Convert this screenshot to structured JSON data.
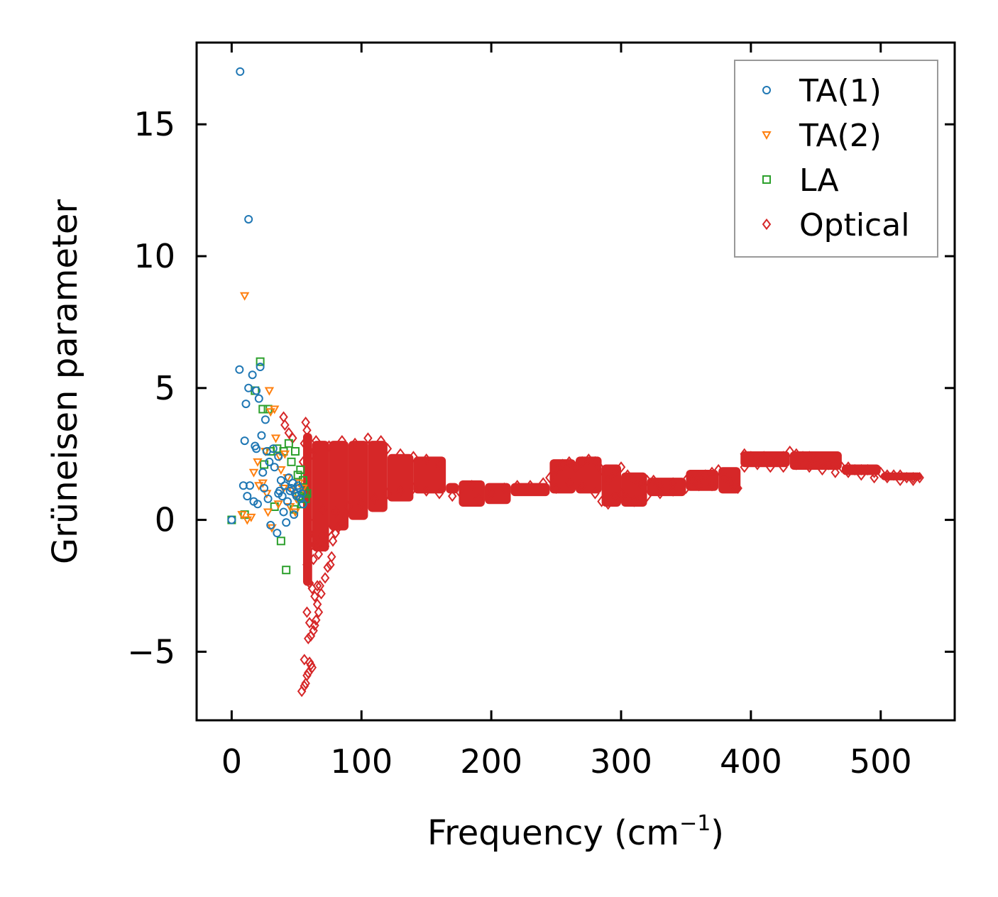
{
  "chart_data": {
    "type": "scatter",
    "title": "",
    "xlabel": "Frequency (cm",
    "xlabel_sup": "−1",
    "xlabel_end": ")",
    "ylabel": "Grüneisen parameter",
    "xlim": [
      -27,
      557
    ],
    "ylim": [
      -7.6,
      18.1
    ],
    "xticks": [
      0,
      100,
      200,
      300,
      400,
      500
    ],
    "xtick_labels": [
      "0",
      "100",
      "200",
      "300",
      "400",
      "500"
    ],
    "yticks": [
      -5,
      0,
      5,
      10,
      15
    ],
    "ytick_labels": [
      "−5",
      "0",
      "5",
      "10",
      "15"
    ],
    "grid": false,
    "legend_position": "top-right",
    "series": [
      {
        "name": "TA(1)",
        "marker": "circle",
        "color": "#1f77b4",
        "points": [
          [
            6.5,
            17.0
          ],
          [
            13,
            11.4
          ],
          [
            6,
            5.7
          ],
          [
            13,
            5.0
          ],
          [
            16,
            5.5
          ],
          [
            11,
            4.4
          ],
          [
            19,
            4.9
          ],
          [
            21,
            4.6
          ],
          [
            22,
            5.8
          ],
          [
            26,
            3.8
          ],
          [
            23,
            3.2
          ],
          [
            10,
            3.0
          ],
          [
            18,
            2.8
          ],
          [
            19,
            2.7
          ],
          [
            27,
            2.6
          ],
          [
            32,
            2.7
          ],
          [
            36,
            2.4
          ],
          [
            9,
            1.3
          ],
          [
            14,
            1.3
          ],
          [
            12,
            0.9
          ],
          [
            17,
            0.7
          ],
          [
            20,
            0.6
          ],
          [
            24,
            1.8
          ],
          [
            29,
            2.2
          ],
          [
            33,
            2.0
          ],
          [
            36,
            1.0
          ],
          [
            38,
            1.5
          ],
          [
            40,
            0.3
          ],
          [
            42,
            -0.1
          ],
          [
            35,
            -0.5
          ],
          [
            30,
            -0.2
          ],
          [
            0,
            0.0
          ],
          [
            25,
            1.2
          ],
          [
            28,
            0.8
          ],
          [
            45,
            1.1
          ],
          [
            47,
            1.4
          ],
          [
            50,
            0.9
          ],
          [
            52,
            1.2
          ],
          [
            54,
            1.0
          ],
          [
            55,
            0.6
          ],
          [
            44,
            1.6
          ],
          [
            48,
            0.2
          ],
          [
            37,
            1.1
          ],
          [
            41,
            1.3
          ],
          [
            43,
            0.7
          ],
          [
            39,
            0.9
          ],
          [
            46,
            1.2
          ],
          [
            49,
            1.0
          ],
          [
            51,
            1.3
          ],
          [
            53,
            0.8
          ]
        ]
      },
      {
        "name": "TA(2)",
        "marker": "triangle-down",
        "color": "#ff7f0e",
        "points": [
          [
            10,
            8.5
          ],
          [
            29,
            4.9
          ],
          [
            30,
            4.1
          ],
          [
            33,
            4.2
          ],
          [
            34,
            3.1
          ],
          [
            20,
            2.2
          ],
          [
            26,
            2.6
          ],
          [
            37,
            2.4
          ],
          [
            41,
            2.5
          ],
          [
            17,
            1.8
          ],
          [
            21,
            1.3
          ],
          [
            24,
            1.4
          ],
          [
            27,
            1.0
          ],
          [
            8,
            0.2
          ],
          [
            12,
            0.0
          ],
          [
            15,
            0.1
          ],
          [
            28,
            0.3
          ],
          [
            31,
            -0.3
          ],
          [
            38,
            1.9
          ],
          [
            43,
            1.6
          ],
          [
            47,
            1.1
          ],
          [
            50,
            0.8
          ],
          [
            52,
            1.4
          ],
          [
            55,
            1.2
          ],
          [
            45,
            0.5
          ],
          [
            49,
            0.3
          ],
          [
            36,
            0.6
          ],
          [
            40,
            1.2
          ]
        ]
      },
      {
        "name": "LA",
        "marker": "square",
        "color": "#2ca02c",
        "points": [
          [
            22,
            6.0
          ],
          [
            18,
            4.9
          ],
          [
            24,
            4.2
          ],
          [
            28,
            4.2
          ],
          [
            40,
            2.6
          ],
          [
            44,
            2.9
          ],
          [
            49,
            2.6
          ],
          [
            46,
            2.2
          ],
          [
            51,
            1.7
          ],
          [
            53,
            1.9
          ],
          [
            55,
            1.5
          ],
          [
            56,
            1.1
          ],
          [
            57,
            0.8
          ],
          [
            58,
            1.0
          ],
          [
            35,
            2.7
          ],
          [
            30,
            2.6
          ],
          [
            25,
            2.1
          ],
          [
            38,
            -0.8
          ],
          [
            42,
            -1.9
          ],
          [
            0,
            0.0
          ],
          [
            10,
            0.2
          ],
          [
            33,
            0.5
          ],
          [
            48,
            0.4
          ],
          [
            52,
            0.9
          ],
          [
            54,
            0.6
          ]
        ]
      },
      {
        "name": "Optical",
        "marker": "diamond",
        "color": "#d62728",
        "points": [
          [
            40,
            3.9
          ],
          [
            41,
            3.6
          ],
          [
            44,
            3.3
          ],
          [
            47,
            3.1
          ],
          [
            57,
            3.7
          ],
          [
            58,
            3.4
          ],
          [
            56,
            2.9
          ],
          [
            60,
            2.6
          ],
          [
            62,
            2.5
          ],
          [
            55,
            2.2
          ],
          [
            58,
            1.8
          ],
          [
            59,
            0.0
          ],
          [
            60,
            -0.5
          ],
          [
            61,
            -1.0
          ],
          [
            62,
            -0.8
          ],
          [
            63,
            -1.5
          ],
          [
            65,
            -1.0
          ],
          [
            67,
            -1.3
          ],
          [
            70,
            -0.6
          ],
          [
            72,
            -1.0
          ],
          [
            75,
            -0.4
          ],
          [
            78,
            -0.8
          ],
          [
            80,
            -0.5
          ],
          [
            82,
            -0.3
          ],
          [
            85,
            -0.1
          ],
          [
            88,
            0.2
          ],
          [
            76,
            -1.7
          ],
          [
            68,
            -2.5
          ],
          [
            58,
            -1.7
          ],
          [
            60,
            -2.4
          ],
          [
            62,
            -2.6
          ],
          [
            64,
            -2.9
          ],
          [
            66,
            -2.5
          ],
          [
            58,
            -3.5
          ],
          [
            60,
            -3.9
          ],
          [
            63,
            -4.2
          ],
          [
            65,
            -3.8
          ],
          [
            59,
            -4.5
          ],
          [
            61,
            -4.4
          ],
          [
            67,
            -3.5
          ],
          [
            56,
            -5.3
          ],
          [
            60,
            -5.4
          ],
          [
            62,
            -5.6
          ],
          [
            58,
            -5.9
          ],
          [
            56,
            -6.3
          ],
          [
            54,
            -6.5
          ],
          [
            57,
            -6.2
          ],
          [
            59,
            -5.8
          ],
          [
            61,
            -5.5
          ],
          [
            64,
            -4.0
          ],
          [
            66,
            -3.2
          ],
          [
            69,
            -2.8
          ],
          [
            72,
            -2.2
          ],
          [
            74,
            -1.8
          ],
          [
            77,
            -1.4
          ],
          [
            65,
            3.0
          ],
          [
            75,
            2.8
          ],
          [
            85,
            3.0
          ],
          [
            95,
            2.9
          ],
          [
            105,
            3.1
          ],
          [
            115,
            3.0
          ],
          [
            120,
            2.7
          ],
          [
            130,
            2.5
          ],
          [
            140,
            2.4
          ],
          [
            150,
            2.3
          ],
          [
            160,
            2.1
          ],
          [
            70,
            0.4
          ],
          [
            80,
            0.3
          ],
          [
            90,
            0.5
          ],
          [
            100,
            0.6
          ],
          [
            110,
            0.8
          ],
          [
            120,
            1.0
          ],
          [
            130,
            1.1
          ],
          [
            140,
            1.2
          ],
          [
            150,
            1.1
          ],
          [
            160,
            1.0
          ],
          [
            170,
            0.9
          ],
          [
            175,
            1.1
          ],
          [
            185,
            1.3
          ],
          [
            190,
            0.8
          ],
          [
            200,
            1.0
          ],
          [
            210,
            1.2
          ],
          [
            220,
            1.3
          ],
          [
            230,
            1.3
          ],
          [
            240,
            1.4
          ],
          [
            245,
            1.6
          ],
          [
            250,
            1.9
          ],
          [
            255,
            2.1
          ],
          [
            260,
            2.2
          ],
          [
            265,
            2.0
          ],
          [
            270,
            2.2
          ],
          [
            275,
            2.3
          ],
          [
            280,
            2.2
          ],
          [
            285,
            1.9
          ],
          [
            290,
            1.5
          ],
          [
            295,
            1.8
          ],
          [
            300,
            2.0
          ],
          [
            305,
            1.7
          ],
          [
            310,
            1.5
          ],
          [
            315,
            1.4
          ],
          [
            320,
            1.5
          ],
          [
            325,
            1.5
          ],
          [
            330,
            1.3
          ],
          [
            340,
            1.4
          ],
          [
            350,
            1.5
          ],
          [
            355,
            1.5
          ],
          [
            360,
            1.6
          ],
          [
            365,
            1.7
          ],
          [
            370,
            1.8
          ],
          [
            375,
            1.9
          ],
          [
            380,
            1.6
          ],
          [
            385,
            1.4
          ],
          [
            390,
            1.2
          ],
          [
            250,
            1.2
          ],
          [
            260,
            1.4
          ],
          [
            270,
            1.3
          ],
          [
            280,
            1.0
          ],
          [
            285,
            0.7
          ],
          [
            290,
            0.6
          ],
          [
            295,
            0.9
          ],
          [
            300,
            1.0
          ],
          [
            305,
            0.8
          ],
          [
            310,
            0.7
          ],
          [
            315,
            0.8
          ],
          [
            320,
            0.9
          ],
          [
            330,
            1.0
          ],
          [
            340,
            1.1
          ],
          [
            350,
            1.2
          ],
          [
            360,
            1.3
          ],
          [
            370,
            1.3
          ],
          [
            395,
            2.5
          ],
          [
            400,
            2.4
          ],
          [
            405,
            2.3
          ],
          [
            410,
            2.4
          ],
          [
            415,
            2.3
          ],
          [
            420,
            2.3
          ],
          [
            425,
            2.4
          ],
          [
            430,
            2.6
          ],
          [
            435,
            2.5
          ],
          [
            440,
            2.4
          ],
          [
            445,
            2.4
          ],
          [
            450,
            2.3
          ],
          [
            455,
            2.2
          ],
          [
            460,
            2.1
          ],
          [
            465,
            2.1
          ],
          [
            470,
            2.0
          ],
          [
            475,
            2.0
          ],
          [
            480,
            1.9
          ],
          [
            485,
            1.9
          ],
          [
            490,
            1.9
          ],
          [
            495,
            1.8
          ],
          [
            500,
            1.8
          ],
          [
            505,
            1.7
          ],
          [
            510,
            1.7
          ],
          [
            515,
            1.7
          ],
          [
            520,
            1.6
          ],
          [
            525,
            1.6
          ],
          [
            530,
            1.6
          ],
          [
            395,
            2.0
          ],
          [
            405,
            2.1
          ],
          [
            415,
            2.0
          ],
          [
            425,
            2.0
          ],
          [
            435,
            2.1
          ],
          [
            445,
            2.0
          ],
          [
            455,
            1.9
          ],
          [
            465,
            1.8
          ],
          [
            475,
            1.8
          ],
          [
            485,
            1.7
          ],
          [
            495,
            1.6
          ],
          [
            505,
            1.6
          ],
          [
            515,
            1.5
          ],
          [
            525,
            1.5
          ]
        ],
        "bands": [
          {
            "x_from": 55,
            "x_to": 62,
            "y_low": -2.5,
            "y_high": 3.3
          },
          {
            "x_from": 62,
            "x_to": 75,
            "y_low": -1.2,
            "y_high": 3.0
          },
          {
            "x_from": 75,
            "x_to": 90,
            "y_low": -0.4,
            "y_high": 3.0
          },
          {
            "x_from": 90,
            "x_to": 105,
            "y_low": 0.0,
            "y_high": 3.0
          },
          {
            "x_from": 105,
            "x_to": 120,
            "y_low": 0.3,
            "y_high": 3.0
          },
          {
            "x_from": 120,
            "x_to": 140,
            "y_low": 0.7,
            "y_high": 2.5
          },
          {
            "x_from": 140,
            "x_to": 165,
            "y_low": 1.0,
            "y_high": 2.4
          },
          {
            "x_from": 165,
            "x_to": 175,
            "y_low": 1.0,
            "y_high": 1.4
          },
          {
            "x_from": 175,
            "x_to": 195,
            "y_low": 0.5,
            "y_high": 1.5
          },
          {
            "x_from": 195,
            "x_to": 215,
            "y_low": 0.6,
            "y_high": 1.4
          },
          {
            "x_from": 215,
            "x_to": 245,
            "y_low": 0.9,
            "y_high": 1.4
          },
          {
            "x_from": 245,
            "x_to": 265,
            "y_low": 1.0,
            "y_high": 2.3
          },
          {
            "x_from": 265,
            "x_to": 285,
            "y_low": 1.0,
            "y_high": 2.4
          },
          {
            "x_from": 285,
            "x_to": 300,
            "y_low": 0.5,
            "y_high": 2.1
          },
          {
            "x_from": 300,
            "x_to": 320,
            "y_low": 0.5,
            "y_high": 1.8
          },
          {
            "x_from": 320,
            "x_to": 350,
            "y_low": 0.9,
            "y_high": 1.6
          },
          {
            "x_from": 350,
            "x_to": 375,
            "y_low": 1.1,
            "y_high": 1.9
          },
          {
            "x_from": 375,
            "x_to": 392,
            "y_low": 1.0,
            "y_high": 2.0
          },
          {
            "x_from": 392,
            "x_to": 430,
            "y_low": 2.0,
            "y_high": 2.6
          },
          {
            "x_from": 430,
            "x_to": 470,
            "y_low": 1.9,
            "y_high": 2.6
          },
          {
            "x_from": 470,
            "x_to": 500,
            "y_low": 1.7,
            "y_high": 2.1
          },
          {
            "x_from": 500,
            "x_to": 532,
            "y_low": 1.5,
            "y_high": 1.8
          }
        ]
      }
    ]
  }
}
